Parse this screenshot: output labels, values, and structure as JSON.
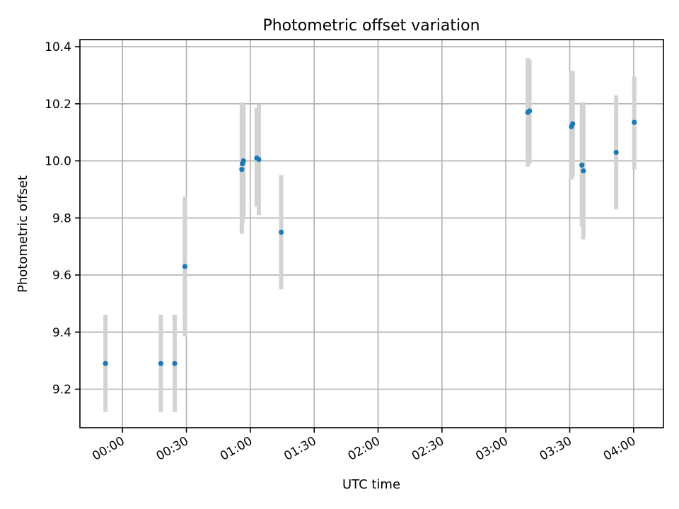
{
  "chart_data": {
    "type": "scatter",
    "title": "Photometric offset variation",
    "xlabel": "UTC time",
    "ylabel": "Photometric offset",
    "x_ticks": [
      "00:00",
      "00:30",
      "01:00",
      "01:30",
      "02:00",
      "02:30",
      "03:00",
      "03:30",
      "04:00"
    ],
    "x_tick_minutes": [
      0,
      30,
      60,
      90,
      120,
      150,
      180,
      210,
      240
    ],
    "xlim_minutes": [
      -20,
      254
    ],
    "y_ticks": [
      "9.2",
      "9.4",
      "9.6",
      "9.8",
      "10.0",
      "10.2",
      "10.4"
    ],
    "y_tick_values": [
      9.2,
      9.4,
      9.6,
      9.8,
      10.0,
      10.2,
      10.4
    ],
    "ylim": [
      9.065,
      10.425
    ],
    "grid": true,
    "point_color": "#1f77b4",
    "errorbar_color": "#d3d3d3",
    "points": [
      {
        "t": "23:52",
        "x": -8,
        "y": 9.29,
        "ylo": 9.12,
        "yhi": 9.46
      },
      {
        "t": "00:18",
        "x": 18,
        "y": 9.29,
        "ylo": 9.12,
        "yhi": 9.46
      },
      {
        "t": "00:25",
        "x": 24.5,
        "y": 9.29,
        "ylo": 9.12,
        "yhi": 9.46
      },
      {
        "t": "00:29",
        "x": 29.3,
        "y": 9.63,
        "ylo": 9.385,
        "yhi": 9.875
      },
      {
        "t": "00:56",
        "x": 56,
        "y": 9.97,
        "ylo": 9.745,
        "yhi": 10.205
      },
      {
        "t": "00:56",
        "x": 56.3,
        "y": 9.99,
        "ylo": 9.78,
        "yhi": 10.2
      },
      {
        "t": "00:57",
        "x": 56.8,
        "y": 10.0,
        "ylo": 9.8,
        "yhi": 10.2
      },
      {
        "t": "01:03",
        "x": 63,
        "y": 10.01,
        "ylo": 9.84,
        "yhi": 10.185
      },
      {
        "t": "01:04",
        "x": 64,
        "y": 10.005,
        "ylo": 9.81,
        "yhi": 10.2
      },
      {
        "t": "01:15",
        "x": 74.5,
        "y": 9.75,
        "ylo": 9.55,
        "yhi": 9.95
      },
      {
        "t": "03:10",
        "x": 190.3,
        "y": 10.17,
        "ylo": 9.98,
        "yhi": 10.36
      },
      {
        "t": "03:11",
        "x": 191.1,
        "y": 10.175,
        "ylo": 9.99,
        "yhi": 10.355
      },
      {
        "t": "03:31",
        "x": 210.8,
        "y": 10.12,
        "ylo": 9.935,
        "yhi": 10.315
      },
      {
        "t": "03:31",
        "x": 211.4,
        "y": 10.13,
        "ylo": 9.945,
        "yhi": 10.315
      },
      {
        "t": "03:36",
        "x": 215.7,
        "y": 9.985,
        "ylo": 9.77,
        "yhi": 10.205
      },
      {
        "t": "03:36",
        "x": 216.4,
        "y": 9.965,
        "ylo": 9.725,
        "yhi": 10.205
      },
      {
        "t": "03:52",
        "x": 231.8,
        "y": 10.03,
        "ylo": 9.83,
        "yhi": 10.23
      },
      {
        "t": "04:00",
        "x": 240.3,
        "y": 10.135,
        "ylo": 9.97,
        "yhi": 10.295
      }
    ]
  }
}
